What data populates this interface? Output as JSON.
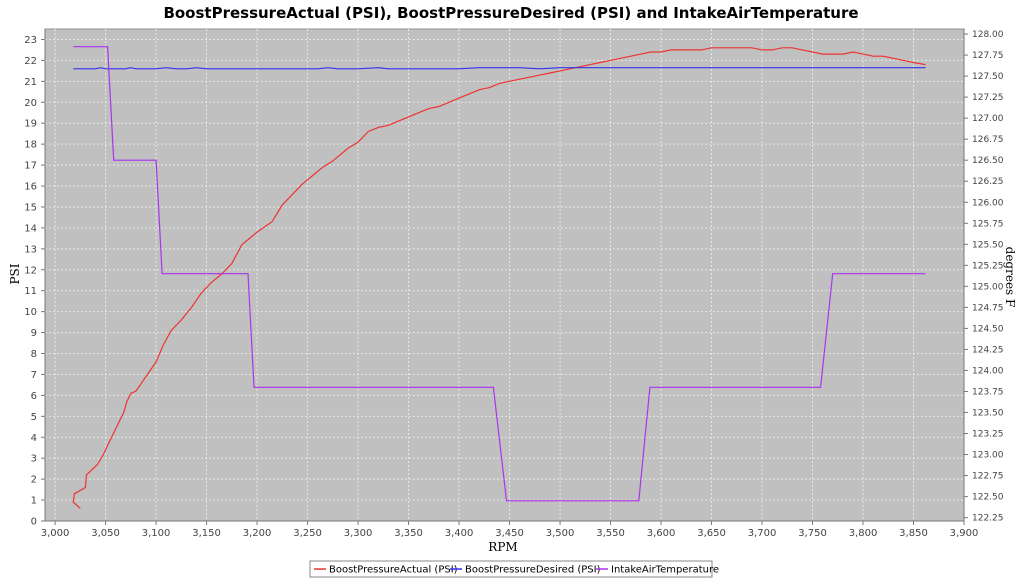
{
  "chart_data": {
    "type": "line",
    "title": "BoostPressureActual (PSI), BoostPressureDesired (PSI) and IntakeAirTemperature",
    "xlabel": "RPM",
    "ylabel": "PSI",
    "y2label": "degrees F",
    "xlim": [
      2990,
      3900
    ],
    "ylim": [
      0,
      23.5
    ],
    "y2lim": [
      122.21,
      128.06
    ],
    "x_ticks": [
      "3,000",
      "3,050",
      "3,100",
      "3,150",
      "3,200",
      "3,250",
      "3,300",
      "3,350",
      "3,400",
      "3,450",
      "3,500",
      "3,550",
      "3,600",
      "3,650",
      "3,700",
      "3,750",
      "3,800",
      "3,850",
      "3,900"
    ],
    "x_tick_values": [
      3000,
      3050,
      3100,
      3150,
      3200,
      3250,
      3300,
      3350,
      3400,
      3450,
      3500,
      3550,
      3600,
      3650,
      3700,
      3750,
      3800,
      3850,
      3900
    ],
    "y_ticks": [
      "0",
      "1",
      "2",
      "3",
      "4",
      "5",
      "6",
      "7",
      "8",
      "9",
      "10",
      "11",
      "12",
      "13",
      "14",
      "15",
      "16",
      "17",
      "18",
      "19",
      "20",
      "21",
      "22",
      "23"
    ],
    "y_tick_values": [
      0,
      1,
      2,
      3,
      4,
      5,
      6,
      7,
      8,
      9,
      10,
      11,
      12,
      13,
      14,
      15,
      16,
      17,
      18,
      19,
      20,
      21,
      22,
      23
    ],
    "y2_ticks": [
      "122.25",
      "122.50",
      "122.75",
      "123.00",
      "123.25",
      "123.50",
      "123.75",
      "124.00",
      "124.25",
      "124.50",
      "124.75",
      "125.00",
      "125.25",
      "125.50",
      "125.75",
      "126.00",
      "126.25",
      "126.50",
      "126.75",
      "127.00",
      "127.25",
      "127.50",
      "127.75",
      "128.00"
    ],
    "y2_tick_values": [
      122.25,
      122.5,
      122.75,
      123.0,
      123.25,
      123.5,
      123.75,
      124.0,
      124.25,
      124.5,
      124.75,
      125.0,
      125.25,
      125.5,
      125.75,
      126.0,
      126.25,
      126.5,
      126.75,
      127.0,
      127.25,
      127.5,
      127.75,
      128.0
    ],
    "grid": true,
    "legend_position": "bottom",
    "series": [
      {
        "name": "BoostPressureActual (PSI)",
        "color": "#ee3333",
        "axis": "left",
        "x": [
          3025,
          3018,
          3019,
          3030,
          3031,
          3042,
          3048,
          3055,
          3062,
          3068,
          3071,
          3075,
          3080,
          3090,
          3100,
          3107,
          3115,
          3125,
          3135,
          3145,
          3155,
          3165,
          3175,
          3185,
          3200,
          3215,
          3225,
          3235,
          3245,
          3255,
          3265,
          3275,
          3290,
          3300,
          3310,
          3320,
          3330,
          3340,
          3350,
          3360,
          3370,
          3380,
          3390,
          3400,
          3410,
          3420,
          3430,
          3440,
          3450,
          3460,
          3470,
          3480,
          3490,
          3500,
          3510,
          3520,
          3530,
          3540,
          3550,
          3560,
          3570,
          3580,
          3590,
          3600,
          3610,
          3620,
          3630,
          3640,
          3650,
          3660,
          3670,
          3680,
          3690,
          3700,
          3710,
          3720,
          3730,
          3740,
          3750,
          3760,
          3770,
          3780,
          3790,
          3800,
          3810,
          3820,
          3830,
          3840,
          3850,
          3862
        ],
        "values": [
          0.6,
          0.9,
          1.3,
          1.6,
          2.2,
          2.7,
          3.2,
          3.9,
          4.6,
          5.2,
          5.7,
          6.1,
          6.2,
          6.9,
          7.6,
          8.4,
          9.1,
          9.6,
          10.2,
          10.9,
          11.4,
          11.8,
          12.3,
          13.2,
          13.8,
          14.3,
          15.1,
          15.6,
          16.1,
          16.5,
          16.9,
          17.2,
          17.8,
          18.1,
          18.6,
          18.8,
          18.9,
          19.1,
          19.3,
          19.5,
          19.7,
          19.8,
          20.0,
          20.2,
          20.4,
          20.6,
          20.7,
          20.9,
          21.0,
          21.1,
          21.2,
          21.3,
          21.4,
          21.5,
          21.6,
          21.7,
          21.8,
          21.9,
          22.0,
          22.1,
          22.2,
          22.3,
          22.4,
          22.4,
          22.5,
          22.5,
          22.5,
          22.5,
          22.6,
          22.6,
          22.6,
          22.6,
          22.6,
          22.5,
          22.5,
          22.6,
          22.6,
          22.5,
          22.4,
          22.3,
          22.3,
          22.3,
          22.4,
          22.3,
          22.2,
          22.2,
          22.1,
          22.0,
          21.9,
          21.8
        ]
      },
      {
        "name": "BoostPressureDesired (PSI)",
        "color": "#3333ee",
        "axis": "left",
        "x": [
          3018,
          3040,
          3045,
          3050,
          3060,
          3070,
          3075,
          3080,
          3090,
          3100,
          3110,
          3120,
          3130,
          3140,
          3150,
          3200,
          3260,
          3270,
          3280,
          3300,
          3320,
          3330,
          3340,
          3400,
          3420,
          3440,
          3460,
          3480,
          3500,
          3550,
          3600,
          3700,
          3800,
          3862
        ],
        "values": [
          21.6,
          21.6,
          21.65,
          21.6,
          21.6,
          21.6,
          21.65,
          21.6,
          21.6,
          21.6,
          21.65,
          21.6,
          21.6,
          21.65,
          21.6,
          21.6,
          21.6,
          21.65,
          21.6,
          21.6,
          21.65,
          21.6,
          21.6,
          21.6,
          21.65,
          21.65,
          21.65,
          21.6,
          21.65,
          21.65,
          21.65,
          21.65,
          21.65,
          21.65
        ]
      },
      {
        "name": "IntakeAirTemperature",
        "color": "#aa33ee",
        "axis": "right",
        "x": [
          3018,
          3052,
          3058,
          3100,
          3106,
          3191,
          3197,
          3434,
          3447,
          3578,
          3589,
          3758,
          3770,
          3862
        ],
        "values": [
          127.85,
          127.85,
          126.5,
          126.5,
          125.15,
          125.15,
          123.8,
          123.8,
          122.45,
          122.45,
          123.8,
          123.8,
          125.15,
          125.15
        ]
      }
    ]
  }
}
